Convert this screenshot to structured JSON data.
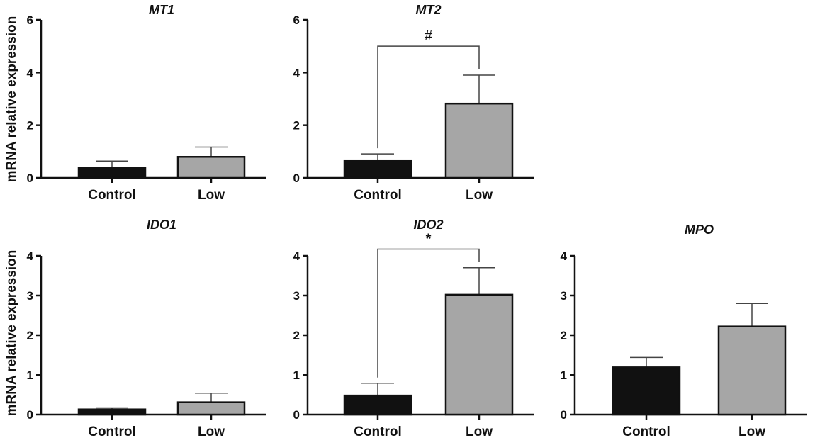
{
  "ylabel": "mRNA relative expression",
  "colors": {
    "control": "#111111",
    "low": "#a6a6a6",
    "axis": "#111111",
    "errorbar": "#444444"
  },
  "chart_data": [
    {
      "type": "bar",
      "title": "MT1",
      "categories": [
        "Control",
        "Low"
      ],
      "values": [
        0.38,
        0.8
      ],
      "errors": [
        0.26,
        0.37
      ],
      "ylim": [
        0,
        6
      ],
      "yticks": [
        "0",
        "2",
        "4",
        "6"
      ],
      "ylabel": "mRNA relative expression",
      "significance": null
    },
    {
      "type": "bar",
      "title": "MT2",
      "categories": [
        "Control",
        "Low"
      ],
      "values": [
        0.64,
        2.82
      ],
      "errors": [
        0.27,
        1.08
      ],
      "ylim": [
        0,
        6
      ],
      "yticks": [
        "0",
        "2",
        "4",
        "6"
      ],
      "ylabel": "",
      "significance": {
        "label": "#",
        "bracket_level": 5.0
      }
    },
    {
      "type": "bar",
      "title": "IDO1",
      "categories": [
        "Control",
        "Low"
      ],
      "values": [
        0.13,
        0.31
      ],
      "errors": [
        0.04,
        0.23
      ],
      "ylim": [
        0,
        4
      ],
      "yticks": [
        "0",
        "1",
        "2",
        "3",
        "4"
      ],
      "ylabel": "mRNA relative expression",
      "significance": null
    },
    {
      "type": "bar",
      "title": "IDO2",
      "categories": [
        "Control",
        "Low"
      ],
      "values": [
        0.48,
        3.02
      ],
      "errors": [
        0.31,
        0.68
      ],
      "ylim": [
        0,
        4
      ],
      "yticks": [
        "0",
        "1",
        "2",
        "3",
        "4"
      ],
      "ylabel": "",
      "significance": {
        "label": "*",
        "bracket_level": 4.17
      }
    },
    {
      "type": "bar",
      "title": "MPO",
      "categories": [
        "Control",
        "Low"
      ],
      "values": [
        1.19,
        2.22
      ],
      "errors": [
        0.25,
        0.58
      ],
      "ylim": [
        0,
        4
      ],
      "yticks": [
        "0",
        "1",
        "2",
        "3",
        "4"
      ],
      "ylabel": "",
      "significance": null
    }
  ]
}
